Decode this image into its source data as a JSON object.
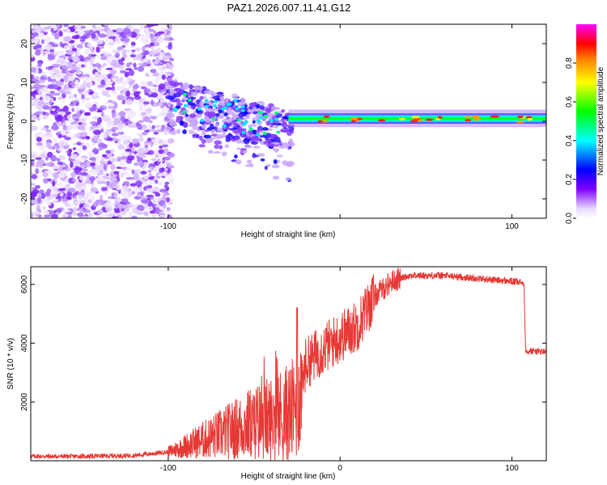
{
  "title": "PAZ1.2026.007.11.41.G12",
  "chart_data": [
    {
      "type": "heatmap",
      "name": "spectrogram",
      "xlabel": "Height of straight line (km)",
      "ylabel": "Frequency (Hz)",
      "xlim": [
        -180,
        120
      ],
      "ylim": [
        -25,
        25
      ],
      "xticks": [
        -100,
        0,
        100
      ],
      "xtick_labels": [
        "-100",
        "",
        "100"
      ],
      "yticks": [
        -20,
        -10,
        0,
        10,
        20
      ],
      "ytick_labels": [
        "-20",
        "-10",
        "0",
        "10",
        "20"
      ],
      "colorbar": {
        "label": "Normalized spectral amplitude",
        "range": [
          0,
          1
        ],
        "ticks": [
          0.0,
          0.2,
          0.4,
          0.6,
          0.8
        ],
        "tick_labels": [
          "0.0",
          "0.2",
          "0.4",
          "0.6",
          "0.8"
        ],
        "colormap": [
          "#ffffff",
          "#e8d8ff",
          "#8000ff",
          "#0000ff",
          "#00ffff",
          "#00ff00",
          "#ffff00",
          "#ff8000",
          "#ff0000",
          "#ff00ff"
        ]
      },
      "regions": [
        {
          "desc": "scattered noise",
          "x_range": [
            -180,
            -100
          ],
          "y_range": [
            -25,
            25
          ],
          "amplitude": 0.12
        },
        {
          "desc": "transition clusters",
          "x_range": [
            -100,
            -30
          ],
          "y_range": [
            -18,
            10
          ],
          "amplitude": 0.3
        },
        {
          "desc": "tone along zero Hz",
          "x_range": [
            -30,
            120
          ],
          "y_center": 0.5,
          "amplitude": 0.85
        }
      ]
    },
    {
      "type": "line",
      "name": "snr",
      "xlabel": "Height of straight line (km)",
      "ylabel": "SNR (10 * v/v)",
      "xlim": [
        -180,
        120
      ],
      "ylim": [
        0,
        6600
      ],
      "xticks": [
        -100,
        0,
        100
      ],
      "xtick_labels": [
        "-100",
        "0",
        "100"
      ],
      "yticks": [
        2000,
        4000,
        6000
      ],
      "ytick_labels": [
        "2000",
        "4000",
        "6000"
      ],
      "series": [
        {
          "name": "SNR",
          "color": "#e53935",
          "x": [
            -180,
            -150,
            -120,
            -100,
            -90,
            -80,
            -70,
            -60,
            -50,
            -40,
            -30,
            -25,
            -20,
            -10,
            0,
            10,
            20,
            30,
            40,
            60,
            80,
            100,
            107,
            108,
            120
          ],
          "y": [
            150,
            150,
            180,
            300,
            500,
            700,
            900,
            1100,
            1300,
            1400,
            1600,
            1800,
            3300,
            3800,
            4200,
            4600,
            5600,
            6100,
            6300,
            6300,
            6200,
            6100,
            6050,
            3750,
            3700
          ]
        }
      ]
    }
  ]
}
